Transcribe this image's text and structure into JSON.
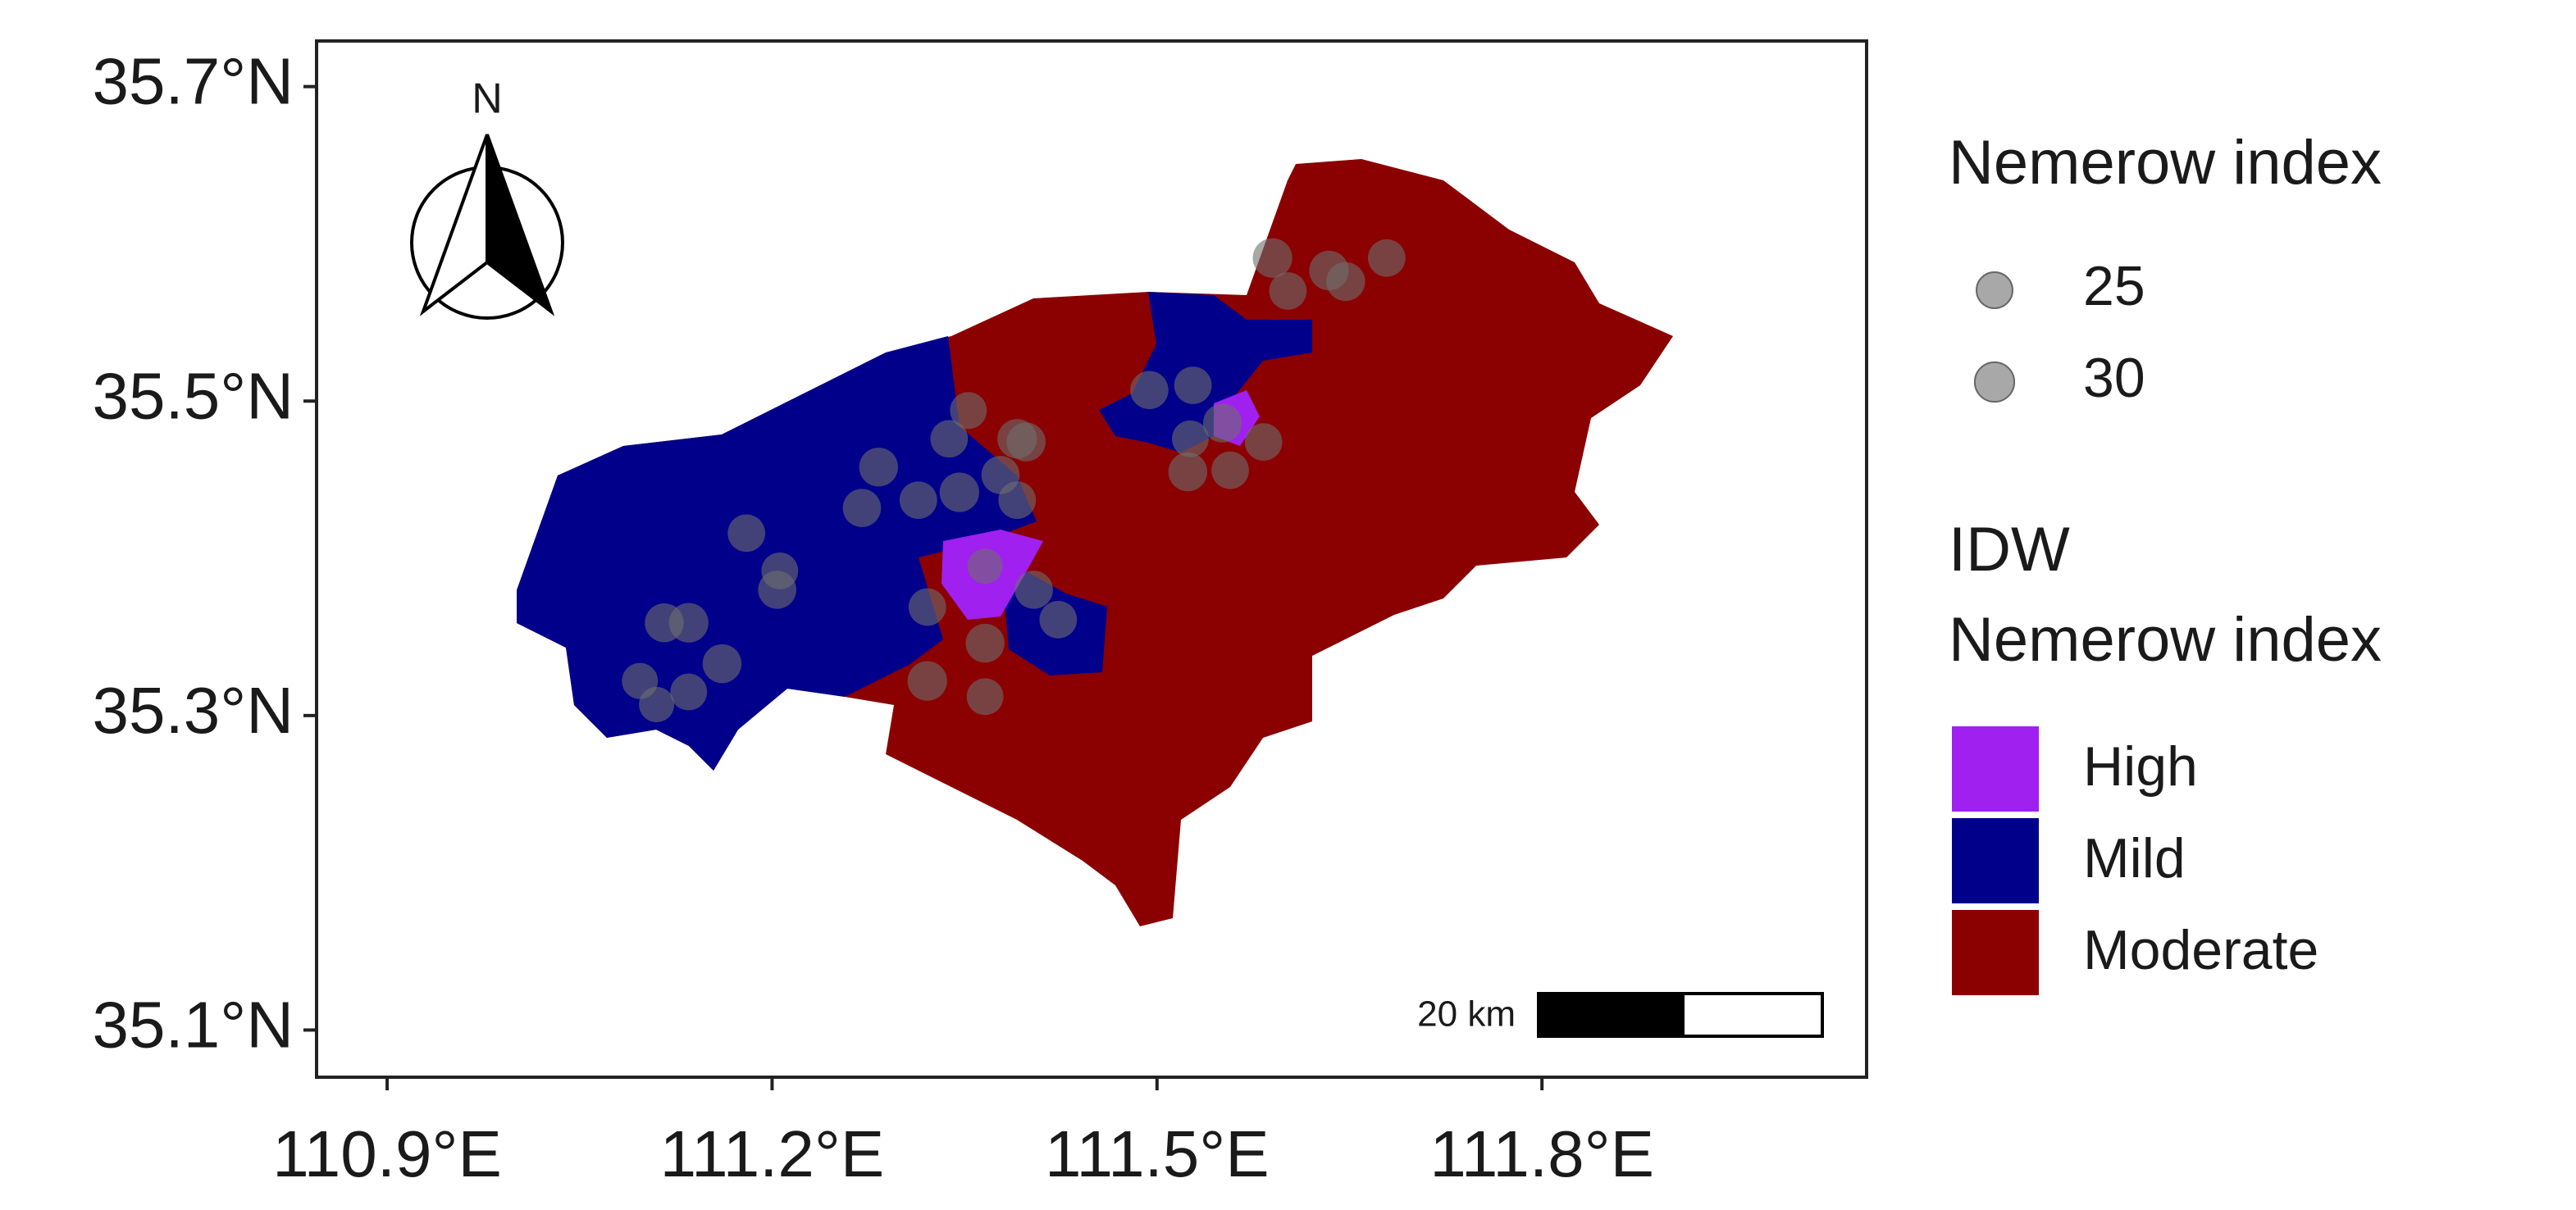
{
  "chart_data": {
    "type": "scatter",
    "xlim": [
      110.845,
      112.053
    ],
    "ylim": [
      35.07,
      35.729
    ],
    "xticks": [
      {
        "value": 110.9,
        "label": "110.9°E"
      },
      {
        "value": 111.2,
        "label": "111.2°E"
      },
      {
        "value": 111.5,
        "label": "111.5°E"
      },
      {
        "value": 111.8,
        "label": "111.8°E"
      }
    ],
    "yticks": [
      {
        "value": 35.1,
        "label": "35.1°N"
      },
      {
        "value": 35.3,
        "label": "35.3°N"
      },
      {
        "value": 35.5,
        "label": "35.5°N"
      },
      {
        "value": 35.7,
        "label": "35.7°N"
      }
    ],
    "point_color": "#6e6e6e",
    "x": [
      111.59,
      111.602,
      111.647,
      111.679,
      111.634,
      111.494,
      111.528,
      111.551,
      111.526,
      111.583,
      111.524,
      111.557,
      111.353,
      111.338,
      111.391,
      111.398,
      111.378,
      111.346,
      111.314,
      111.283,
      111.27,
      111.391,
      111.366,
      111.321,
      111.404,
      111.423,
      111.366,
      111.321,
      111.366,
      111.18,
      111.206,
      111.204,
      111.116,
      111.135,
      111.161,
      111.135,
      111.097,
      111.11
    ],
    "y": [
      35.591,
      35.57,
      35.576,
      35.591,
      35.583,
      35.507,
      35.51,
      35.486,
      35.476,
      35.474,
      35.455,
      35.456,
      35.494,
      35.476,
      35.476,
      35.474,
      35.453,
      35.442,
      35.437,
      35.458,
      35.432,
      35.437,
      35.395,
      35.369,
      35.38,
      35.361,
      35.346,
      35.322,
      35.312,
      35.416,
      35.392,
      35.38,
      35.359,
      35.359,
      35.333,
      35.315,
      35.322,
      35.307
    ],
    "size": [
      30,
      27,
      29,
      27,
      30,
      28,
      27,
      29,
      26,
      27,
      29,
      27,
      26,
      27,
      30,
      29,
      28,
      30,
      27,
      29,
      28,
      27,
      24,
      27,
      28,
      27,
      29,
      30,
      26,
      27,
      26,
      28,
      29,
      30,
      29,
      26,
      25,
      24
    ],
    "size_legend_title": "Nemerow index",
    "size_legend": [
      25,
      30
    ],
    "fill_legend_title": [
      "IDW",
      "Nemerow index"
    ],
    "fill_categories": [
      {
        "name": "High",
        "color": "#a020f0"
      },
      {
        "name": "Mild",
        "color": "#00008b"
      },
      {
        "name": "Moderate",
        "color": "#8b0000"
      }
    ],
    "north_arrow_label": "N",
    "scale_bar_label": "20 km"
  }
}
